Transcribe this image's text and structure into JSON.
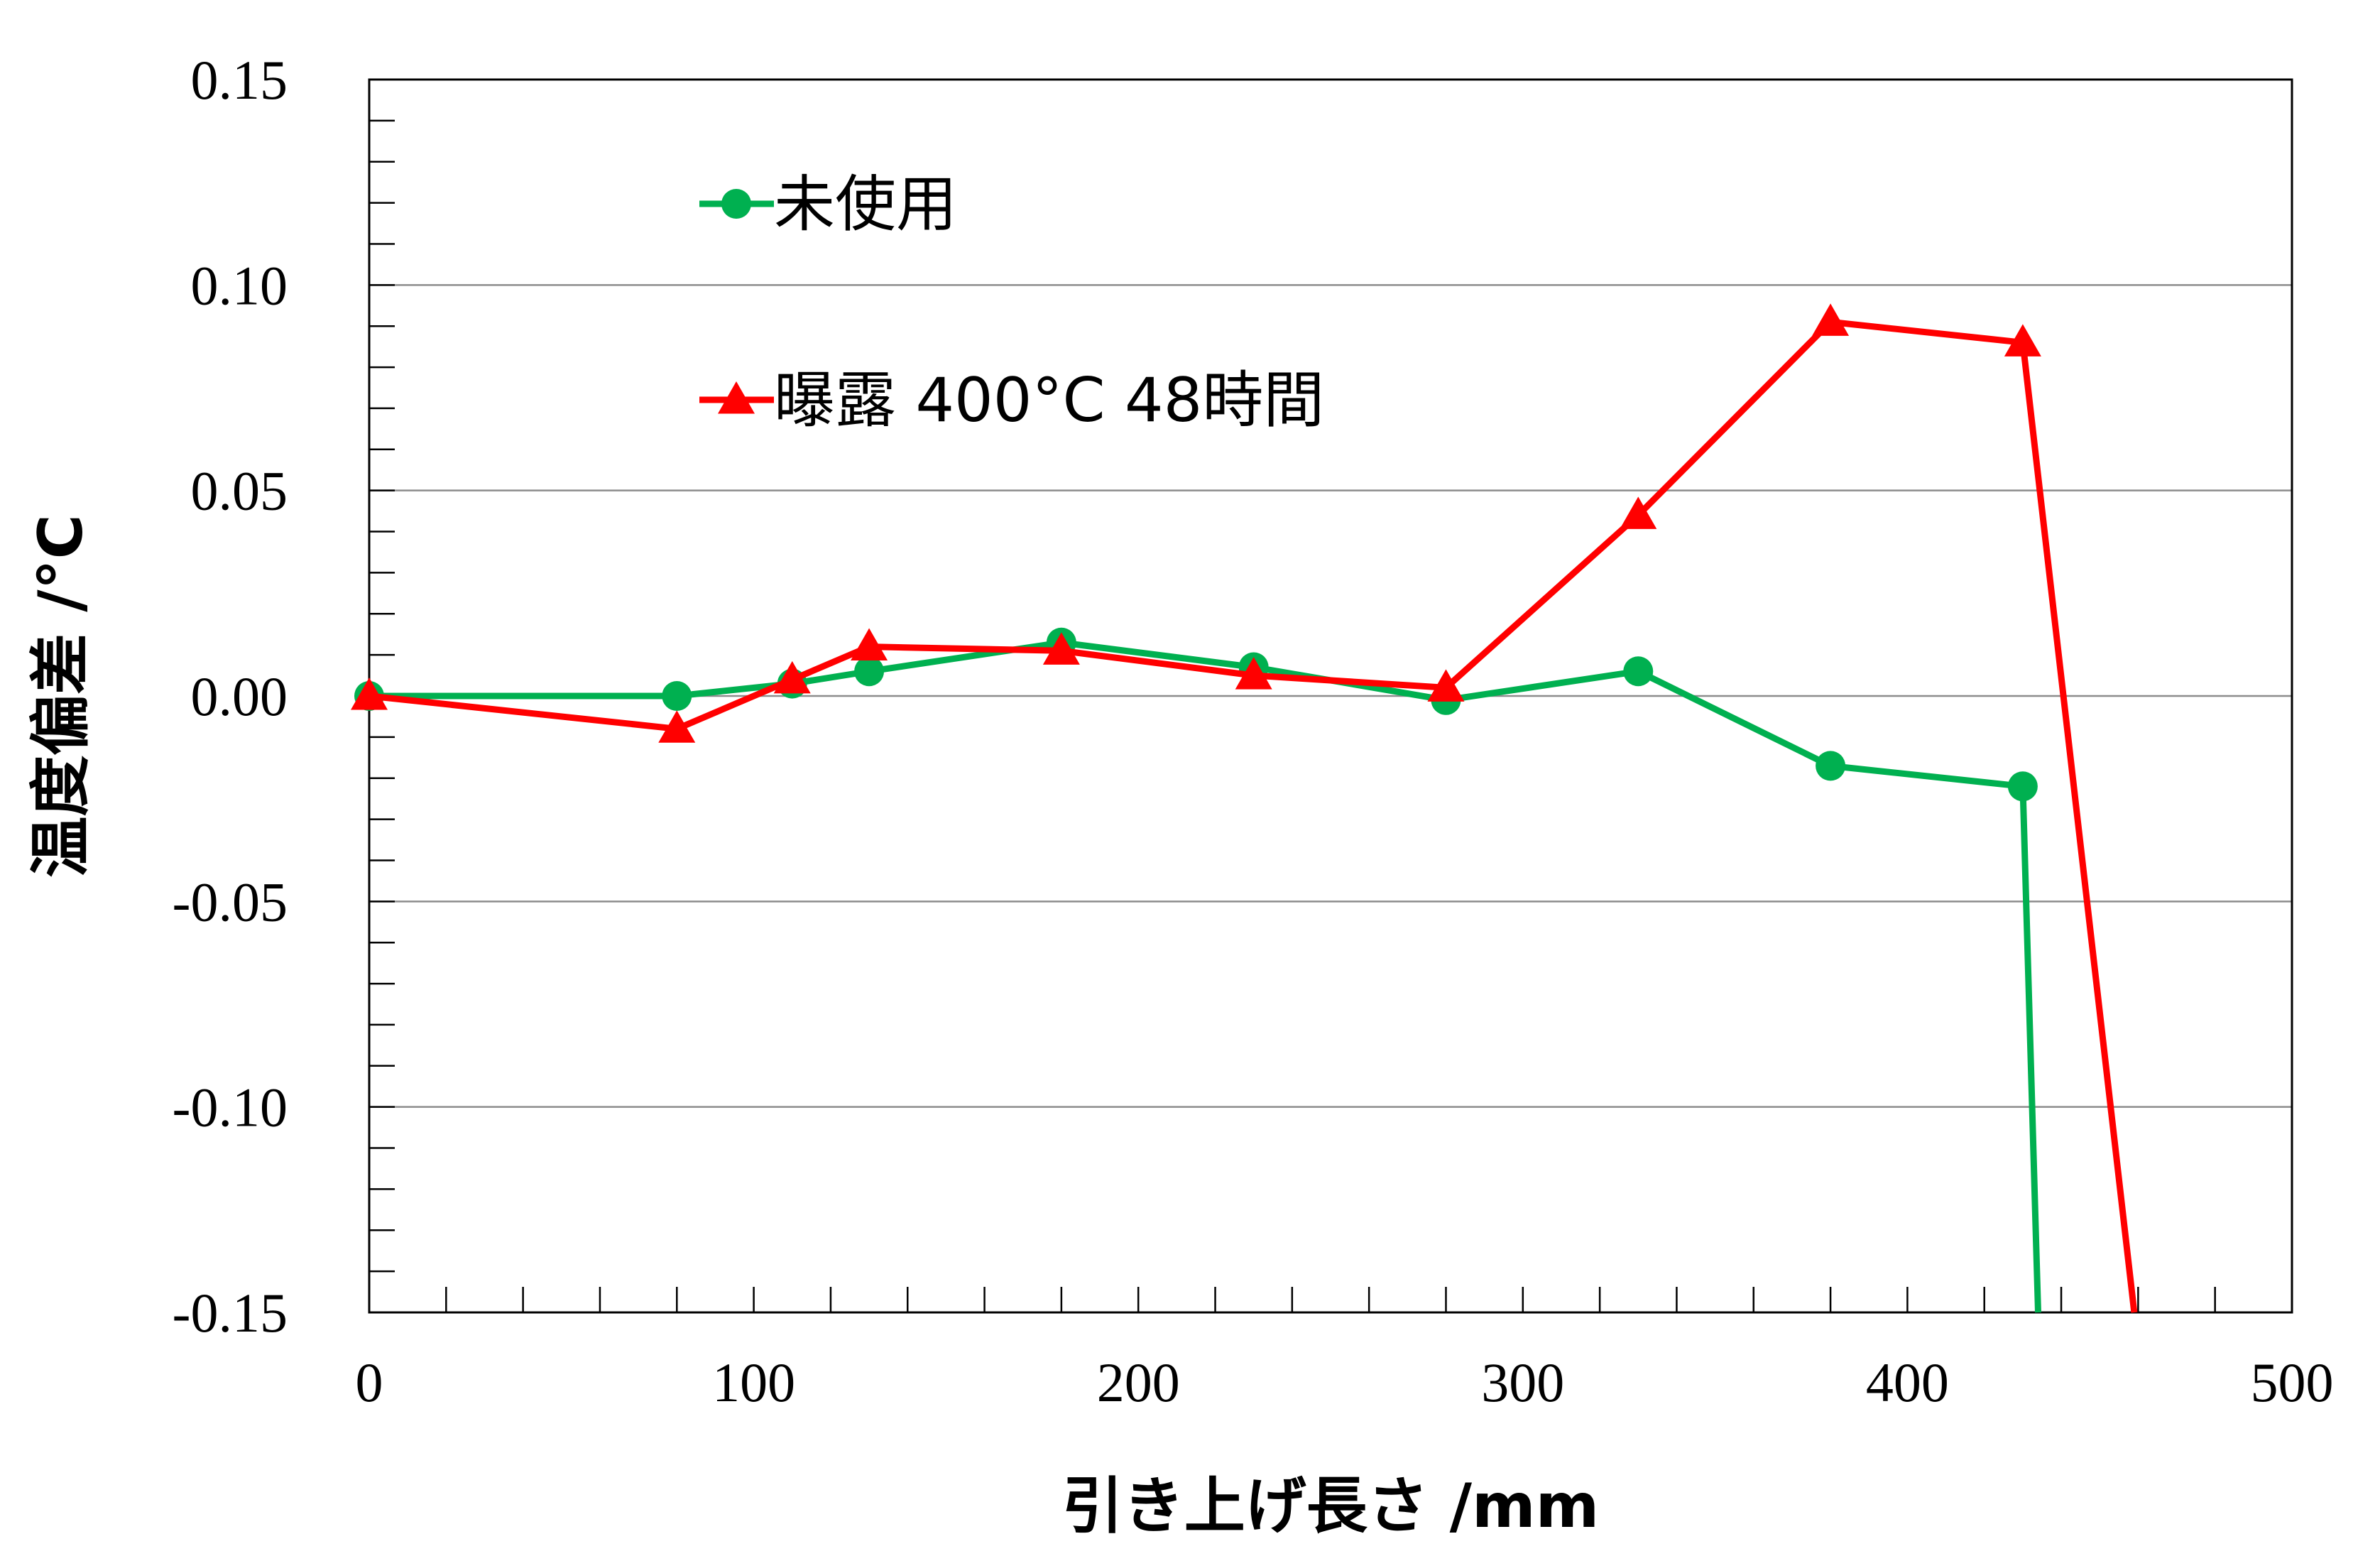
{
  "chart_data": {
    "type": "line",
    "xlabel": "引き上げ長さ /mm",
    "ylabel": "温度偏差 /°C",
    "xlim": [
      0,
      500
    ],
    "ylim": [
      -0.15,
      0.15
    ],
    "x_ticks": [
      "0",
      "100",
      "200",
      "300",
      "400",
      "500"
    ],
    "y_ticks": [
      "0.15",
      "0.10",
      "0.05",
      "0.00",
      "-0.05",
      "-0.10",
      "-0.15"
    ],
    "grid": "horizontal",
    "legend_position": "top-left",
    "series": [
      {
        "name": "未使用",
        "color": "#00b050",
        "marker": "circle",
        "points": [
          [
            0,
            0.0
          ],
          [
            80,
            0.0
          ],
          [
            110,
            0.003
          ],
          [
            130,
            0.006
          ],
          [
            180,
            0.013
          ],
          [
            230,
            0.007
          ],
          [
            280,
            -0.001
          ],
          [
            330,
            0.006
          ],
          [
            380,
            -0.017
          ],
          [
            430,
            -0.022
          ],
          [
            434,
            -0.15
          ]
        ],
        "marker_count": 10
      },
      {
        "name": "曝露 400°C 48時間",
        "color": "#ff0000",
        "marker": "triangle",
        "points": [
          [
            0,
            0.0
          ],
          [
            80,
            -0.008
          ],
          [
            110,
            0.004
          ],
          [
            130,
            0.012
          ],
          [
            180,
            0.011
          ],
          [
            230,
            0.005
          ],
          [
            280,
            0.002
          ],
          [
            330,
            0.044
          ],
          [
            380,
            0.091
          ],
          [
            430,
            0.086
          ],
          [
            459,
            -0.15
          ]
        ],
        "marker_count": 10
      }
    ]
  }
}
